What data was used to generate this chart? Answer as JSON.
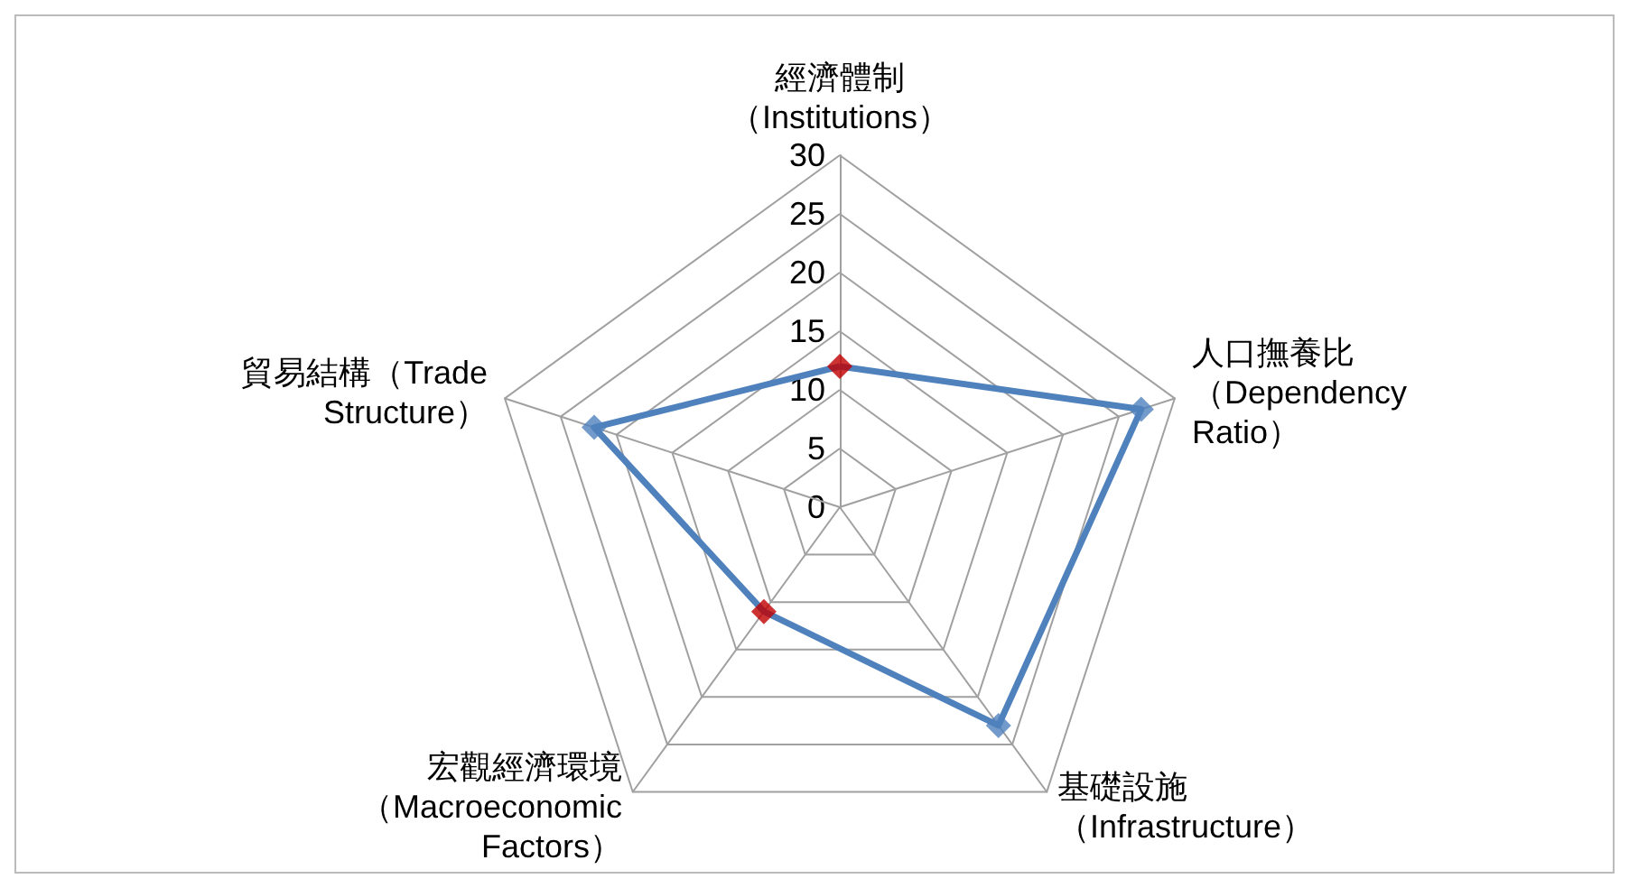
{
  "chart_data": {
    "type": "radar",
    "categories": [
      "經濟體制（Institutions）",
      "人口撫養比（Dependency\nRatio）",
      "基礎設施（Infrastructure）",
      "宏觀經濟環境（Macroeconomic\nFactors）",
      "貿易結構（Trade\nStructure）"
    ],
    "series": [
      {
        "color": "#4f81bd",
        "values": [
          12,
          27,
          23,
          11,
          22
        ],
        "colors": [
          "#c00000",
          "#4f81bd",
          "#4f81bd",
          "#c00000",
          "#4f81bd"
        ]
      }
    ],
    "ylim": [
      0,
      30
    ],
    "yticks": [
      0,
      5,
      10,
      15,
      20,
      25,
      30
    ],
    "marker": "diamond"
  }
}
